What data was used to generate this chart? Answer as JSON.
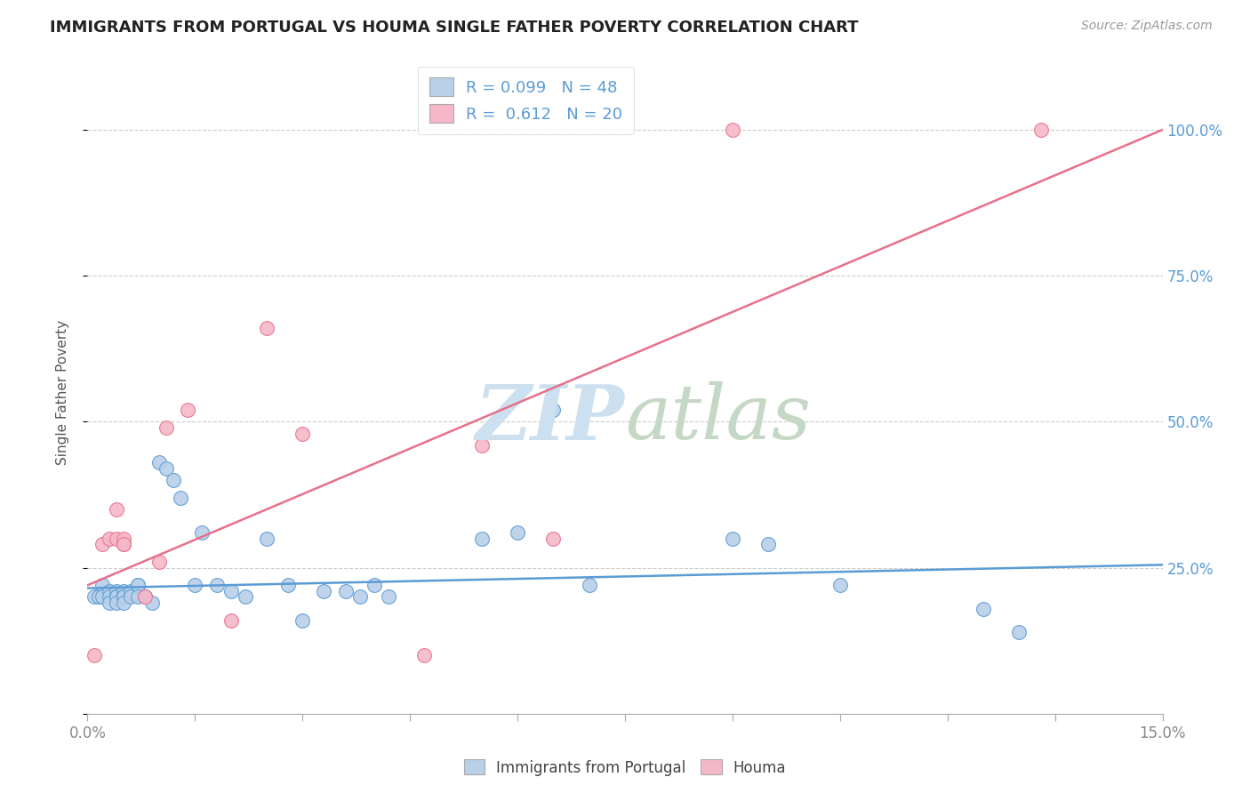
{
  "title": "IMMIGRANTS FROM PORTUGAL VS HOUMA SINGLE FATHER POVERTY CORRELATION CHART",
  "source": "Source: ZipAtlas.com",
  "ylabel": "Single Father Poverty",
  "legend_label_blue": "Immigrants from Portugal",
  "legend_label_pink": "Houma",
  "R_blue": "0.099",
  "N_blue": "48",
  "R_pink": "0.612",
  "N_pink": "20",
  "blue_color": "#b8d0e8",
  "pink_color": "#f5b8c8",
  "line_blue": "#5b9bd5",
  "line_pink": "#e8708a",
  "text_color_blue": "#5b9bd5",
  "watermark_zip_color": "#d0e4f4",
  "watermark_atlas_color": "#c8dcc8",
  "blue_points_x": [
    0.001,
    0.0015,
    0.002,
    0.002,
    0.003,
    0.003,
    0.003,
    0.004,
    0.004,
    0.004,
    0.004,
    0.005,
    0.005,
    0.005,
    0.005,
    0.006,
    0.006,
    0.007,
    0.007,
    0.007,
    0.008,
    0.009,
    0.01,
    0.011,
    0.012,
    0.013,
    0.015,
    0.016,
    0.018,
    0.02,
    0.022,
    0.025,
    0.028,
    0.03,
    0.033,
    0.036,
    0.038,
    0.04,
    0.042,
    0.055,
    0.06,
    0.065,
    0.07,
    0.09,
    0.095,
    0.105,
    0.125,
    0.13
  ],
  "blue_points_y": [
    0.2,
    0.2,
    0.22,
    0.2,
    0.21,
    0.2,
    0.19,
    0.21,
    0.2,
    0.2,
    0.19,
    0.21,
    0.2,
    0.2,
    0.19,
    0.21,
    0.2,
    0.22,
    0.22,
    0.2,
    0.2,
    0.19,
    0.43,
    0.42,
    0.4,
    0.37,
    0.22,
    0.31,
    0.22,
    0.21,
    0.2,
    0.3,
    0.22,
    0.16,
    0.21,
    0.21,
    0.2,
    0.22,
    0.2,
    0.3,
    0.31,
    0.52,
    0.22,
    0.3,
    0.29,
    0.22,
    0.18,
    0.14
  ],
  "pink_points_x": [
    0.001,
    0.002,
    0.003,
    0.004,
    0.004,
    0.005,
    0.005,
    0.005,
    0.008,
    0.01,
    0.011,
    0.014,
    0.02,
    0.025,
    0.03,
    0.047,
    0.055,
    0.065,
    0.09,
    0.133
  ],
  "pink_points_y": [
    0.1,
    0.29,
    0.3,
    0.35,
    0.3,
    0.29,
    0.3,
    0.29,
    0.2,
    0.26,
    0.49,
    0.52,
    0.16,
    0.66,
    0.48,
    0.1,
    0.46,
    0.3,
    1.0,
    1.0
  ],
  "xmin": 0.0,
  "xmax": 0.15,
  "ymin": 0.0,
  "ymax": 1.1,
  "pink_line_x0": 0.0,
  "pink_line_y0": 0.22,
  "pink_line_x1": 0.15,
  "pink_line_y1": 1.0,
  "blue_line_x0": 0.0,
  "blue_line_y0": 0.215,
  "blue_line_x1": 0.15,
  "blue_line_y1": 0.255
}
